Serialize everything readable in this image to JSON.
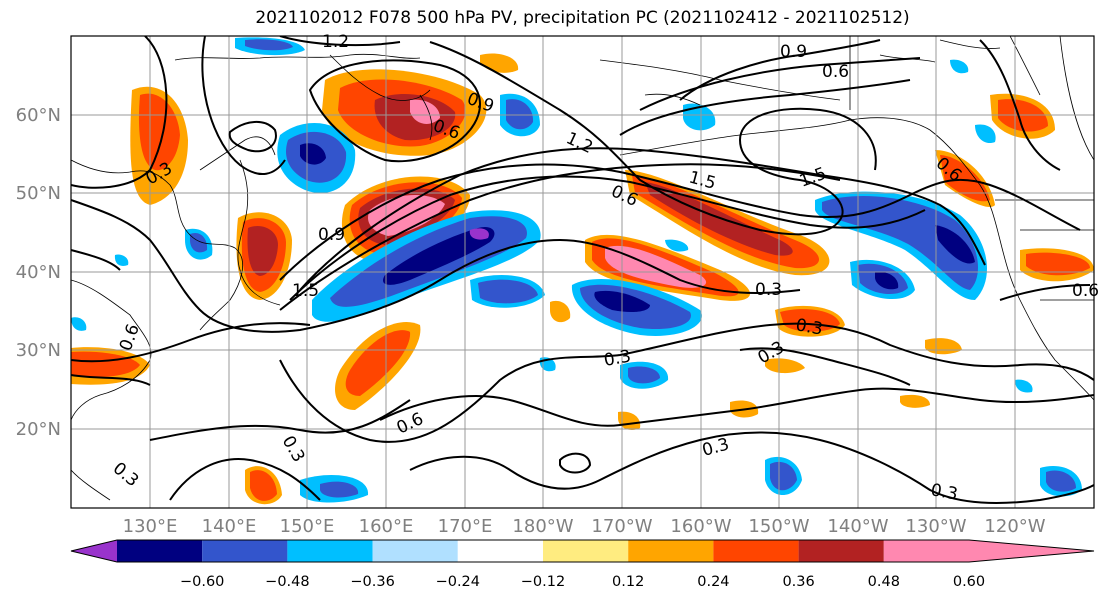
{
  "title": "2021102012 F078 500 hPa PV, precipitation PC (2021102412 - 2021102512)",
  "lat_labels": [
    "60°N",
    "50°N",
    "40°N",
    "30°N",
    "20°N"
  ],
  "lon_labels": [
    "130°E",
    "140°E",
    "150°E",
    "160°E",
    "170°E",
    "180°W",
    "170°W",
    "160°W",
    "150°W",
    "140°W",
    "130°W",
    "120°W"
  ],
  "contour_labels": [
    "1.2",
    "0.9",
    "0.6",
    "0.9",
    "0.6",
    "1.2",
    "0.6",
    "1.5",
    "1.5",
    "0.3",
    "0.9",
    "1.5",
    "0.3",
    "0.3",
    "0.3",
    "0.6",
    "0.3",
    "0.3",
    "0.3",
    "0.3",
    "0.6",
    "0.6",
    "0.3",
    "0.6"
  ],
  "colorbar": {
    "tick_labels": [
      "−0.60",
      "−0.48",
      "−0.36",
      "−0.24",
      "−0.12",
      "0.12",
      "0.24",
      "0.36",
      "0.48",
      "0.60"
    ],
    "colors": [
      "#9933cc",
      "#000080",
      "#3355cc",
      "#00bfff",
      "#b0e0ff",
      "#ffffff",
      "#ffec80",
      "#ffa500",
      "#ff4500",
      "#b22222",
      "#ff88b0"
    ]
  },
  "palette": {
    "coast": "#000000",
    "grid": "#999999",
    "axis_label": "#808080"
  }
}
